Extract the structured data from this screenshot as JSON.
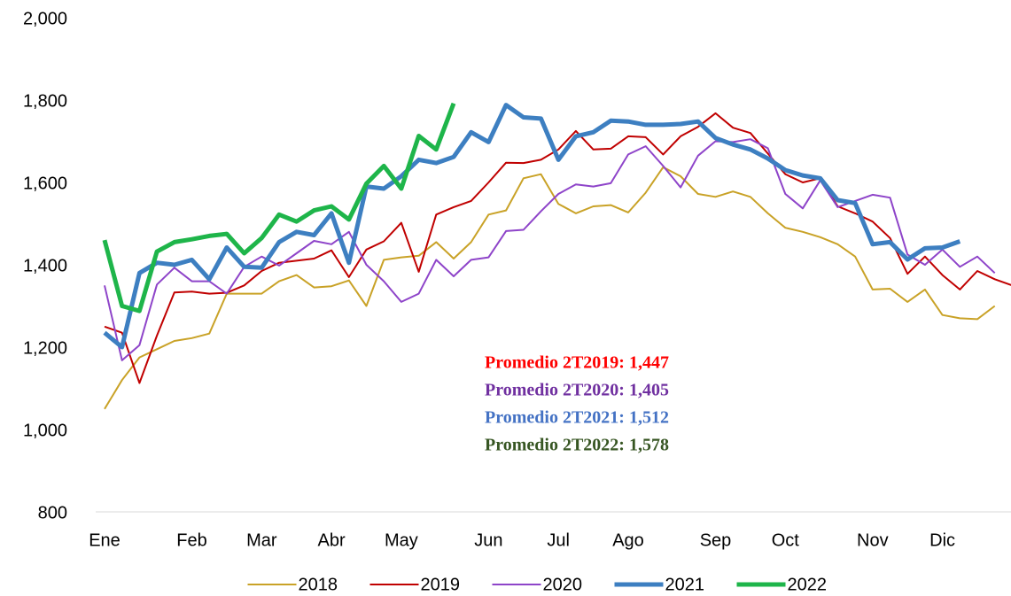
{
  "chart_data": {
    "type": "line",
    "categories": [
      "Ene",
      null,
      null,
      null,
      null,
      "Feb",
      null,
      null,
      null,
      "Mar",
      null,
      null,
      null,
      "Abr",
      null,
      null,
      null,
      "May",
      null,
      null,
      null,
      null,
      "Jun",
      null,
      null,
      null,
      "Jul",
      null,
      null,
      null,
      "Ago",
      null,
      null,
      null,
      null,
      "Sep",
      null,
      null,
      null,
      "Oct",
      null,
      null,
      null,
      null,
      "Nov",
      null,
      null,
      null,
      "Dic",
      null,
      null,
      null,
      null
    ],
    "ylim": [
      800,
      2000
    ],
    "yticks": [
      800,
      {
        "value": 1000,
        "label": "1,000"
      },
      {
        "value": 1200,
        "label": "1,200"
      },
      {
        "value": 1400,
        "label": "1,400"
      },
      {
        "value": 1600,
        "label": "1,600"
      },
      {
        "value": 1800,
        "label": "1,800"
      },
      {
        "value": 2000,
        "label": "2,000"
      }
    ],
    "grid": false,
    "legend": "bottom",
    "series": [
      {
        "name": "2018",
        "color": "#c9a227",
        "width": 2,
        "values": [
          1050,
          1120,
          1175,
          1195,
          1215,
          1222,
          1233,
          1330,
          1330,
          1330,
          1360,
          1375,
          1345,
          1348,
          1362,
          1300,
          1412,
          1418,
          1422,
          1455,
          1415,
          1455,
          1522,
          1532,
          1610,
          1620,
          1548,
          1525,
          1542,
          1545,
          1527,
          1575,
          1637,
          1615,
          1572,
          1565,
          1578,
          1565,
          1525,
          1490,
          1480,
          1467,
          1450,
          1420,
          1340,
          1342,
          1310,
          1340,
          1278,
          1270,
          1268,
          1300,
          null
        ]
      },
      {
        "name": "2019",
        "color": "#c00000",
        "width": 2,
        "values": [
          1250,
          1235,
          1113,
          1228,
          1333,
          1335,
          1330,
          1332,
          1350,
          1385,
          1405,
          1410,
          1415,
          1435,
          1370,
          1437,
          1457,
          1502,
          1383,
          1522,
          1540,
          1555,
          1600,
          1648,
          1647,
          1655,
          1680,
          1725,
          1680,
          1682,
          1712,
          1710,
          1668,
          1712,
          1735,
          1768,
          1733,
          1720,
          1670,
          1620,
          1600,
          1610,
          1542,
          1525,
          1505,
          1465,
          1378,
          1420,
          1375,
          1340,
          1385,
          1365,
          1350
        ]
      },
      {
        "name": "2020",
        "color": "#8e44c9",
        "width": 2,
        "values": [
          1350,
          1168,
          1205,
          1352,
          1393,
          1360,
          1360,
          1330,
          1395,
          1420,
          1398,
          1428,
          1458,
          1450,
          1480,
          1400,
          1360,
          1310,
          1330,
          1412,
          1372,
          1412,
          1418,
          1482,
          1485,
          1530,
          1572,
          1595,
          1590,
          1598,
          1668,
          1688,
          1640,
          1588,
          1665,
          1700,
          1698,
          1705,
          1683,
          1572,
          1537,
          1605,
          1540,
          1555,
          1570,
          1563,
          1425,
          1400,
          1437,
          1395,
          1420,
          1380,
          null
        ]
      },
      {
        "name": "2021",
        "color": "#3d7fc1",
        "width": 5,
        "values": [
          1235,
          1200,
          1380,
          1405,
          1400,
          1412,
          1365,
          1442,
          1395,
          1393,
          1455,
          1480,
          1472,
          1525,
          1405,
          1590,
          1585,
          1615,
          1655,
          1647,
          1662,
          1722,
          1698,
          1788,
          1758,
          1755,
          1655,
          1712,
          1722,
          1750,
          1748,
          1740,
          1740,
          1742,
          1748,
          1708,
          1692,
          1680,
          1658,
          1630,
          1617,
          1610,
          1557,
          1550,
          1450,
          1455,
          1413,
          1440,
          1442,
          1457,
          null,
          null,
          null
        ]
      },
      {
        "name": "2022",
        "color": "#1eb54a",
        "width": 5,
        "values": [
          1460,
          1300,
          1288,
          1432,
          1455,
          1462,
          1470,
          1475,
          1428,
          1465,
          1522,
          1505,
          1532,
          1542,
          1510,
          1597,
          1640,
          1585,
          1713,
          1680,
          1792,
          null,
          null,
          null,
          null,
          null,
          null,
          null,
          null,
          null,
          null,
          null,
          null,
          null,
          null,
          null,
          null,
          null,
          null,
          null,
          null,
          null,
          null,
          null,
          null,
          null,
          null,
          null,
          null,
          null,
          null,
          null,
          null
        ]
      }
    ],
    "annotations": [
      {
        "text": "Promedio 2T2019: 1,447",
        "color": "#ff0000"
      },
      {
        "text": "Promedio 2T2020: 1,405",
        "color": "#7030a0"
      },
      {
        "text": "Promedio 2T2021: 1,512",
        "color": "#4472c4"
      },
      {
        "text": "Promedio 2T2022: 1,578",
        "color": "#375623"
      }
    ]
  }
}
